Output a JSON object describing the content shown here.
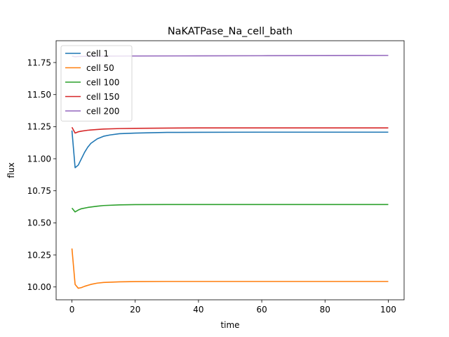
{
  "chart_data": {
    "type": "line",
    "title": "NaKATPase_Na_cell_bath",
    "xlabel": "time",
    "ylabel": "flux",
    "xlim": [
      -5,
      105
    ],
    "ylim": [
      9.9,
      11.92
    ],
    "xticks": [
      0,
      20,
      40,
      60,
      80,
      100
    ],
    "xtick_labels": [
      "0",
      "20",
      "40",
      "60",
      "80",
      "100"
    ],
    "yticks": [
      10.0,
      10.25,
      10.5,
      10.75,
      11.0,
      11.25,
      11.5,
      11.75
    ],
    "ytick_labels": [
      "10.00",
      "10.25",
      "10.50",
      "10.75",
      "11.00",
      "11.25",
      "11.50",
      "11.75"
    ],
    "grid": false,
    "legend_position": "top-left",
    "series": [
      {
        "name": "cell 1",
        "color": "#1f77b4",
        "x": [
          0,
          1,
          2,
          3,
          4,
          5,
          6,
          8,
          10,
          12,
          15,
          20,
          30,
          40,
          60,
          80,
          100
        ],
        "y": [
          11.22,
          10.93,
          10.95,
          11.0,
          11.05,
          11.09,
          11.12,
          11.155,
          11.175,
          11.185,
          11.195,
          11.2,
          11.205,
          11.206,
          11.207,
          11.207,
          11.207
        ]
      },
      {
        "name": "cell 50",
        "color": "#ff7f0e",
        "x": [
          0,
          1,
          2,
          3,
          4,
          6,
          8,
          10,
          15,
          20,
          30,
          40,
          60,
          80,
          100
        ],
        "y": [
          10.3,
          10.02,
          9.99,
          9.995,
          10.005,
          10.02,
          10.03,
          10.035,
          10.04,
          10.042,
          10.043,
          10.043,
          10.043,
          10.043,
          10.043
        ]
      },
      {
        "name": "cell 100",
        "color": "#2ca02c",
        "x": [
          0,
          1,
          2,
          3,
          5,
          8,
          10,
          15,
          20,
          30,
          40,
          60,
          80,
          100
        ],
        "y": [
          10.615,
          10.585,
          10.6,
          10.61,
          10.62,
          10.63,
          10.635,
          10.64,
          10.642,
          10.643,
          10.643,
          10.643,
          10.643,
          10.643
        ]
      },
      {
        "name": "cell 150",
        "color": "#d62728",
        "x": [
          0,
          1,
          2,
          3,
          5,
          8,
          10,
          15,
          20,
          30,
          40,
          60,
          80,
          100
        ],
        "y": [
          11.245,
          11.2,
          11.21,
          11.215,
          11.222,
          11.228,
          11.231,
          11.235,
          11.237,
          11.239,
          11.24,
          11.24,
          11.24,
          11.24
        ]
      },
      {
        "name": "cell 200",
        "color": "#9467bd",
        "x": [
          0,
          1,
          2,
          3,
          5,
          10,
          20,
          40,
          60,
          80,
          100
        ],
        "y": [
          11.8,
          11.795,
          11.797,
          11.798,
          11.799,
          11.8,
          11.801,
          11.802,
          11.803,
          11.804,
          11.805
        ]
      }
    ]
  }
}
